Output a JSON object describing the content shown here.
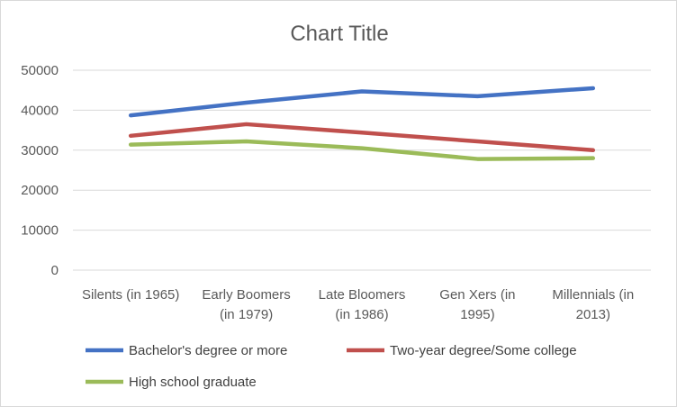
{
  "chart_data": {
    "type": "line",
    "title": "Chart Title",
    "xlabel": "",
    "ylabel": "",
    "categories": [
      [
        "Silents (in 1965)"
      ],
      [
        "Early Boomers",
        "(in 1979)"
      ],
      [
        "Late Bloomers",
        "(in 1986)"
      ],
      [
        "Gen Xers (in",
        "1995)"
      ],
      [
        "Millennials (in",
        "2013)"
      ]
    ],
    "ylim": [
      0,
      50000
    ],
    "yticks": [
      0,
      10000,
      20000,
      30000,
      40000,
      50000
    ],
    "grid": true,
    "legend_position": "bottom",
    "series": [
      {
        "name": "Bachelor's degree or more",
        "color": "#4472c4",
        "values": [
          38700,
          41900,
          44700,
          43500,
          45500
        ]
      },
      {
        "name": "Two-year degree/Some college",
        "color": "#c0504d",
        "values": [
          33600,
          36500,
          34400,
          32200,
          30000
        ]
      },
      {
        "name": "High school graduate",
        "color": "#9bbb59",
        "values": [
          31400,
          32200,
          30500,
          27800,
          28000
        ]
      }
    ]
  }
}
